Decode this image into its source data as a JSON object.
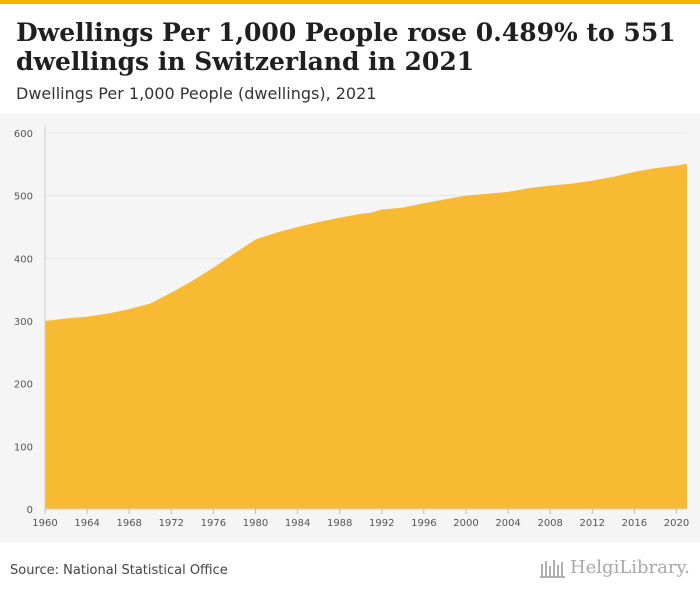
{
  "header": {
    "title": "Dwellings Per 1,000 People rose 0.489% to 551 dwellings in Switzerland in 2021",
    "subtitle": "Dwellings Per 1,000 People (dwellings), 2021"
  },
  "footer": {
    "source": "Source: National Statistical Office",
    "brand": "HelgiLibrary."
  },
  "colors": {
    "accent": "#f6b400",
    "fill": "#f7ba32",
    "plot_bg": "#f5f5f5",
    "grid": "#e6e6e6"
  },
  "chart_data": {
    "type": "area",
    "title": "Dwellings Per 1,000 People rose 0.489% to 551 dwellings in Switzerland in 2021",
    "subtitle": "Dwellings Per 1,000 People (dwellings), 2021",
    "xlabel": "",
    "ylabel": "",
    "ylim": [
      0,
      600
    ],
    "xlim": [
      1960,
      2021
    ],
    "yticks": [
      0,
      100,
      200,
      300,
      400,
      500,
      600
    ],
    "xticks": [
      1960,
      1964,
      1968,
      1972,
      1976,
      1980,
      1984,
      1988,
      1992,
      1996,
      2000,
      2004,
      2008,
      2012,
      2016,
      2020
    ],
    "grid": true,
    "series": [
      {
        "name": "Dwellings Per 1,000 People",
        "x": [
          1960,
          1962,
          1964,
          1966,
          1968,
          1970,
          1972,
          1974,
          1976,
          1978,
          1980,
          1982,
          1984,
          1986,
          1988,
          1990,
          1991,
          1992,
          1994,
          1996,
          1998,
          2000,
          2002,
          2004,
          2006,
          2008,
          2010,
          2012,
          2014,
          2016,
          2018,
          2020,
          2021
        ],
        "values": [
          300,
          304,
          307,
          312,
          319,
          328,
          345,
          364,
          385,
          408,
          430,
          441,
          450,
          458,
          465,
          471,
          473,
          478,
          481,
          488,
          494,
          500,
          503,
          506,
          512,
          516,
          519,
          524,
          530,
          538,
          544,
          548,
          551
        ]
      }
    ]
  }
}
